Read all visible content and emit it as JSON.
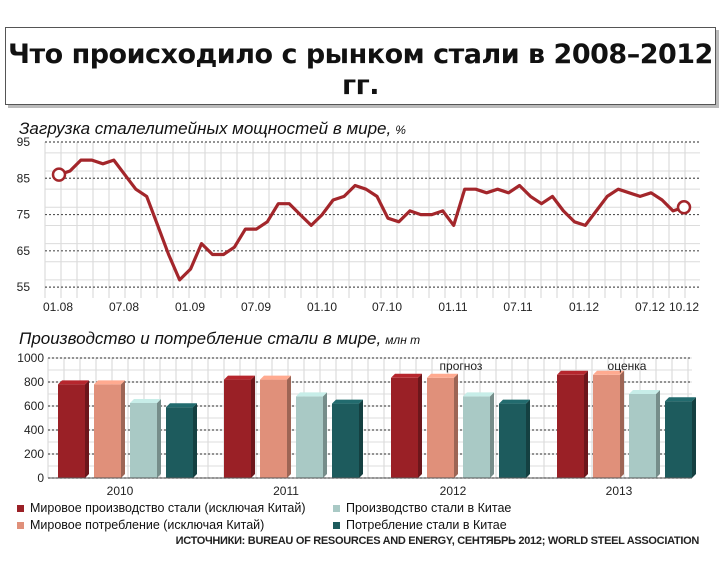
{
  "title": "Что происходило с рынком стали в 2008–2012 гг.",
  "chart_data": [
    {
      "type": "line",
      "title": "Загрузка сталелитейных мощностей в мире,",
      "unit": "%",
      "ylim": [
        52,
        95
      ],
      "yticks": [
        95,
        85,
        75,
        65,
        55
      ],
      "xticks": [
        "01.08",
        "07.08",
        "01.09",
        "07.09",
        "01.10",
        "07.10",
        "01.11",
        "07.11",
        "01.12",
        "07.12",
        "10.12"
      ],
      "values": [
        86,
        87,
        90,
        90,
        89,
        90,
        86,
        82,
        80,
        72,
        64,
        57,
        60,
        67,
        64,
        64,
        66,
        71,
        71,
        73,
        78,
        78,
        75,
        72,
        75,
        79,
        80,
        83,
        82,
        80,
        74,
        73,
        76,
        75,
        75,
        76,
        72,
        82,
        82,
        81,
        82,
        81,
        83,
        80,
        78,
        80,
        76,
        73,
        72,
        76,
        80,
        82,
        81,
        80,
        81,
        79,
        76,
        77
      ],
      "color": "#a3262b"
    },
    {
      "type": "bar",
      "title": "Производство и потребление стали в мире,",
      "unit": "млн т",
      "ylim": [
        0,
        1000
      ],
      "yticks": [
        1000,
        800,
        600,
        400,
        200,
        0
      ],
      "categories": [
        "2010",
        "2011",
        "2012",
        "2013"
      ],
      "notes": [
        "",
        "",
        "прогноз",
        "оценка"
      ],
      "series": [
        {
          "name": "Мировое производство стали (исключая Китай)",
          "values": [
            780,
            820,
            835,
            860
          ],
          "color": "#9a2026"
        },
        {
          "name": "Мировое потребление (исключая Китай)",
          "values": [
            780,
            820,
            835,
            860
          ],
          "color": "#e0907a"
        },
        {
          "name": "Производство стали в Китае",
          "values": [
            625,
            680,
            680,
            700
          ],
          "color": "#a9c9c5"
        },
        {
          "name": "Потребление стали в Китае",
          "values": [
            590,
            620,
            620,
            640
          ],
          "color": "#1d5b5d"
        }
      ]
    }
  ],
  "source": "ИСТОЧНИКИ: BUREAU OF RESOURCES AND ENERGY, СЕНТЯБРЬ 2012; WORLD STEEL ASSOCIATION"
}
